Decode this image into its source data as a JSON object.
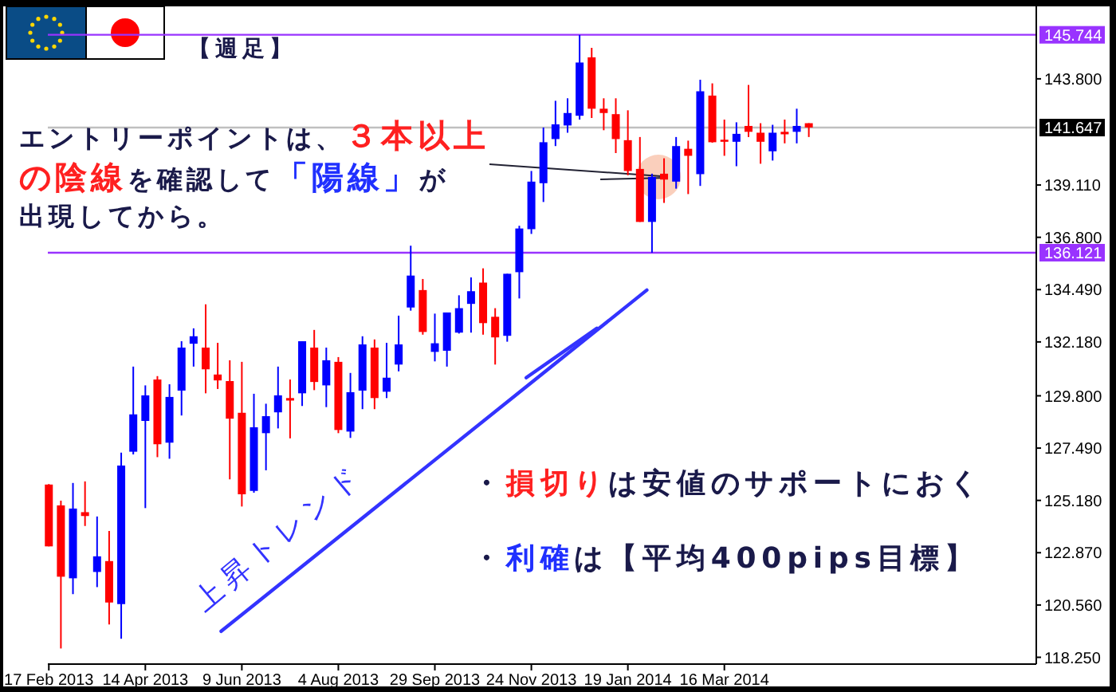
{
  "chart_data": {
    "type": "candlestick",
    "x": [
      "2013-02-17",
      "2013-02-24",
      "2013-03-03",
      "2013-03-10",
      "2013-03-17",
      "2013-03-24",
      "2013-03-31",
      "2013-04-07",
      "2013-04-14",
      "2013-04-21",
      "2013-04-28",
      "2013-05-05",
      "2013-05-12",
      "2013-05-19",
      "2013-05-26",
      "2013-06-02",
      "2013-06-09",
      "2013-06-16",
      "2013-06-23",
      "2013-06-30",
      "2013-07-07",
      "2013-07-14",
      "2013-07-21",
      "2013-07-28",
      "2013-08-04",
      "2013-08-11",
      "2013-08-18",
      "2013-08-25",
      "2013-09-01",
      "2013-09-08",
      "2013-09-15",
      "2013-09-22",
      "2013-09-29",
      "2013-10-06",
      "2013-10-13",
      "2013-10-20",
      "2013-10-27",
      "2013-11-03",
      "2013-11-10",
      "2013-11-17",
      "2013-11-24",
      "2013-12-01",
      "2013-12-08",
      "2013-12-15",
      "2013-12-22",
      "2013-12-29",
      "2014-01-05",
      "2014-01-12",
      "2014-01-19",
      "2014-01-26",
      "2014-02-02",
      "2014-02-09",
      "2014-02-16",
      "2014-02-23",
      "2014-03-02",
      "2014-03-09",
      "2014-03-16",
      "2014-03-23",
      "2014-03-30",
      "2014-04-06",
      "2014-04-13",
      "2014-04-20",
      "2014-04-27",
      "2014-05-04"
    ],
    "ohlc": [
      [
        125.88,
        125.9,
        123.15,
        123.15
      ],
      [
        124.96,
        125.17,
        118.64,
        121.81
      ],
      [
        121.74,
        125.95,
        121.04,
        124.82
      ],
      [
        124.66,
        126.02,
        124.05,
        124.49
      ],
      [
        122.02,
        124.47,
        121.35,
        122.71
      ],
      [
        122.5,
        123.83,
        119.7,
        120.67
      ],
      [
        120.6,
        127.29,
        119.07,
        126.72
      ],
      [
        127.33,
        131.09,
        127.21,
        128.98
      ],
      [
        128.69,
        130.26,
        124.84,
        129.82
      ],
      [
        130.52,
        130.67,
        127.09,
        127.66
      ],
      [
        127.73,
        130.31,
        127.02,
        129.75
      ],
      [
        130.03,
        132.21,
        128.93,
        131.93
      ],
      [
        132.1,
        132.78,
        131.09,
        132.43
      ],
      [
        131.93,
        133.84,
        129.91,
        130.97
      ],
      [
        130.74,
        132.14,
        130.1,
        130.48
      ],
      [
        130.45,
        131.37,
        126.11,
        128.79
      ],
      [
        129.05,
        131.3,
        124.91,
        125.45
      ],
      [
        125.6,
        129.89,
        125.52,
        128.41
      ],
      [
        128.15,
        129.45,
        126.51,
        128.9
      ],
      [
        129.07,
        131.09,
        128.36,
        129.82
      ],
      [
        129.7,
        130.52,
        127.92,
        129.59
      ],
      [
        129.91,
        132.21,
        129.35,
        132.21
      ],
      [
        131.93,
        132.71,
        130.05,
        130.41
      ],
      [
        130.26,
        131.93,
        129.3,
        131.37
      ],
      [
        131.3,
        131.51,
        128.15,
        128.29
      ],
      [
        128.22,
        130.81,
        127.94,
        129.96
      ],
      [
        130.03,
        132.43,
        129.21,
        132.07
      ],
      [
        131.93,
        132.29,
        129.21,
        129.7
      ],
      [
        129.98,
        132.14,
        129.7,
        130.6
      ],
      [
        131.18,
        133.34,
        130.88,
        132.07
      ],
      [
        133.7,
        136.43,
        133.56,
        135.11
      ],
      [
        134.47,
        134.96,
        132.5,
        132.62
      ],
      [
        131.74,
        133.43,
        131.32,
        132.12
      ],
      [
        131.79,
        133.48,
        131.09,
        133.48
      ],
      [
        132.59,
        134.24,
        132.55,
        133.67
      ],
      [
        133.86,
        135.03,
        132.59,
        134.42
      ],
      [
        134.8,
        135.43,
        132.5,
        133.01
      ],
      [
        133.29,
        133.67,
        131.18,
        132.38
      ],
      [
        132.45,
        135.19,
        132.19,
        135.19
      ],
      [
        135.26,
        137.31,
        134.1,
        137.19
      ],
      [
        137.16,
        139.73,
        136.95,
        139.26
      ],
      [
        139.19,
        141.65,
        138.36,
        141.0
      ],
      [
        141.14,
        142.83,
        140.83,
        141.79
      ],
      [
        141.74,
        142.94,
        141.42,
        142.29
      ],
      [
        142.17,
        145.74,
        142.0,
        144.52
      ],
      [
        144.75,
        145.17,
        142.07,
        142.48
      ],
      [
        142.48,
        142.94,
        141.53,
        142.29
      ],
      [
        142.24,
        142.94,
        140.52,
        141.14
      ],
      [
        141.09,
        142.41,
        139.54,
        139.73
      ],
      [
        139.82,
        141.23,
        137.48,
        137.48
      ],
      [
        137.48,
        139.61,
        136.12,
        139.47
      ],
      [
        139.61,
        140.29,
        138.32,
        139.35
      ],
      [
        139.26,
        141.23,
        138.95,
        140.83
      ],
      [
        140.71,
        141.07,
        138.71,
        140.4
      ],
      [
        139.59,
        143.76,
        139.07,
        143.25
      ],
      [
        143.06,
        143.6,
        140.98,
        141.0
      ],
      [
        141.11,
        142.0,
        140.4,
        141.02
      ],
      [
        141.02,
        141.88,
        139.94,
        141.37
      ],
      [
        141.72,
        143.53,
        141.23,
        141.46
      ],
      [
        141.42,
        141.84,
        140.05,
        141.02
      ],
      [
        140.6,
        141.77,
        140.19,
        141.42
      ],
      [
        141.46,
        142.0,
        140.95,
        141.35
      ],
      [
        141.46,
        142.48,
        140.95,
        141.72
      ],
      [
        141.84,
        141.84,
        141.23,
        141.65
      ]
    ],
    "colors": [
      "#ff0000",
      "#ff0000",
      "#0000ff",
      "#ff0000",
      "#0000ff",
      "#ff0000",
      "#0000ff",
      "#0000ff",
      "#0000ff",
      "#ff0000",
      "#0000ff",
      "#0000ff",
      "#0000ff",
      "#ff0000",
      "#ff0000",
      "#ff0000",
      "#ff0000",
      "#0000ff",
      "#0000ff",
      "#0000ff",
      "#ff0000",
      "#0000ff",
      "#ff0000",
      "#0000ff",
      "#ff0000",
      "#0000ff",
      "#0000ff",
      "#ff0000",
      "#0000ff",
      "#0000ff",
      "#0000ff",
      "#ff0000",
      "#0000ff",
      "#0000ff",
      "#0000ff",
      "#0000ff",
      "#ff0000",
      "#ff0000",
      "#0000ff",
      "#0000ff",
      "#0000ff",
      "#0000ff",
      "#0000ff",
      "#0000ff",
      "#0000ff",
      "#ff0000",
      "#ff0000",
      "#ff0000",
      "#ff0000",
      "#ff0000",
      "#0000ff",
      "#ff0000",
      "#0000ff",
      "#ff0000",
      "#0000ff",
      "#ff0000",
      "#ff0000",
      "#0000ff",
      "#ff0000",
      "#ff0000",
      "#0000ff",
      "#ff0000",
      "#0000ff",
      "#ff0000"
    ],
    "series": [
      {
        "type": "line",
        "color": "#3333ff",
        "x": [
          "2013-05-28",
          "2014-01-30"
        ],
        "values": [
          119.4,
          134.47
        ]
      },
      {
        "type": "line",
        "color": "#3333ff",
        "x": [
          "2013-11-21",
          "2014-01-01"
        ],
        "values": [
          130.6,
          132.78
        ]
      }
    ],
    "xlim": [
      "2013-02-16T10:00",
      "2014-09-13"
    ],
    "xticks": [
      {
        "value": "2013-02-17",
        "label": "17 Feb 2013"
      },
      {
        "value": "2013-04-14",
        "label": "14 Apr 2013"
      },
      {
        "value": "2013-06-09",
        "label": "9 Jun 2013"
      },
      {
        "value": "2013-08-04",
        "label": "4 Aug 2013"
      },
      {
        "value": "2013-09-29",
        "label": "29 Sep 2013"
      },
      {
        "value": "2013-11-24",
        "label": "24 Nov 2013"
      },
      {
        "value": "2014-01-19",
        "label": "19 Jan 2014"
      },
      {
        "value": "2014-03-16",
        "label": "16 Mar 2014"
      }
    ],
    "ylim": [
      117.95,
      147.0
    ],
    "yticks": [
      {
        "value": 118.25,
        "label": "118.250"
      },
      {
        "value": 120.56,
        "label": "120.560"
      },
      {
        "value": 122.87,
        "label": "122.870"
      },
      {
        "value": 125.18,
        "label": "125.180"
      },
      {
        "value": 127.49,
        "label": "127.490"
      },
      {
        "value": 129.8,
        "label": "129.800"
      },
      {
        "value": 132.18,
        "label": "132.180"
      },
      {
        "value": 134.49,
        "label": "134.490"
      },
      {
        "value": 136.8,
        "label": "136.800"
      },
      {
        "value": 139.11,
        "label": "139.110"
      },
      {
        "value": 143.8,
        "label": "143.800"
      }
    ],
    "ref_lines": [
      {
        "axis": "y",
        "value": 145.744,
        "label": "145.744",
        "color": "#9933ff"
      },
      {
        "axis": "y",
        "value": 141.647,
        "label": "141.647",
        "color": "#c0c0c0"
      },
      {
        "axis": "y",
        "value": 136.121,
        "label": "136.121",
        "color": "#9933ff"
      }
    ],
    "annotations": [
      "【週足】",
      "エントリーポイントは、",
      {
        "text": "３本以上",
        "x": "2014-02-09",
        "y": 139.5
      },
      "の陰線",
      "を確認して",
      "「陽線」",
      "が",
      "出現してから。",
      "・",
      "損切り",
      "は安値のサポートにおく",
      "・",
      "利確",
      "は【平均400pips目標】",
      "上昇トレンド"
    ],
    "grid": false
  }
}
